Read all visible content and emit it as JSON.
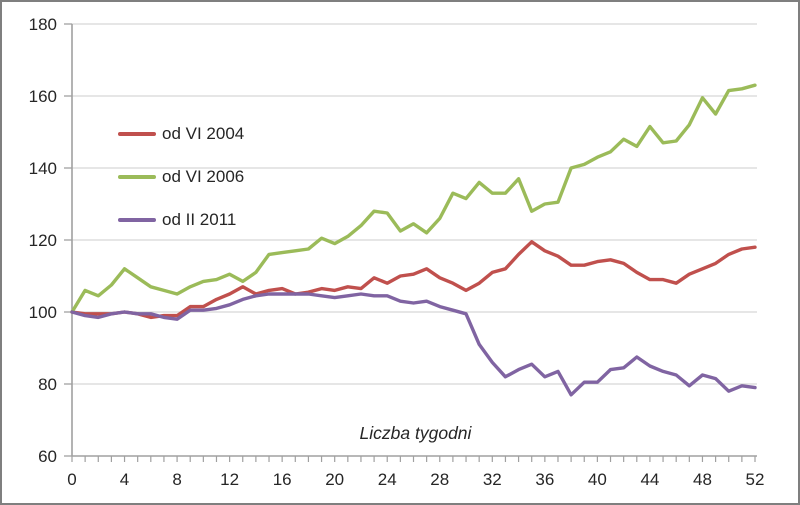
{
  "chart_data": {
    "type": "line",
    "title": "",
    "xlabel": "Liczba tygodni",
    "ylabel": "",
    "grid": true,
    "legend_position": "upper-left-inside",
    "x_axis": {
      "label": "Liczba tygodni",
      "min": 0,
      "max": 52,
      "minor_tick_step": 1,
      "tick_labels": [
        0,
        4,
        8,
        12,
        16,
        20,
        24,
        28,
        32,
        36,
        40,
        44,
        48,
        52
      ]
    },
    "y_axis": {
      "min": 60,
      "max": 180,
      "tick_step": 20,
      "ticks": [
        60,
        80,
        100,
        120,
        140,
        160,
        180
      ]
    },
    "weeks": [
      0,
      1,
      2,
      3,
      4,
      5,
      6,
      7,
      8,
      9,
      10,
      11,
      12,
      13,
      14,
      15,
      16,
      17,
      18,
      19,
      20,
      21,
      22,
      23,
      24,
      25,
      26,
      27,
      28,
      29,
      30,
      31,
      32,
      33,
      34,
      35,
      36,
      37,
      38,
      39,
      40,
      41,
      42,
      43,
      44,
      45,
      46,
      47,
      48,
      49,
      50,
      51,
      52
    ],
    "series": [
      {
        "name": "od VI 2004",
        "color": "#c0504d",
        "values": [
          100,
          99.5,
          99.5,
          99.5,
          100,
          99.5,
          98.5,
          99,
          99,
          101.5,
          101.5,
          103.5,
          105,
          107,
          105,
          106,
          106.5,
          105,
          105.5,
          106.5,
          106,
          107,
          106.5,
          109.5,
          108,
          110,
          110.5,
          112,
          109.5,
          108,
          106,
          108,
          111,
          112,
          116,
          119.5,
          117,
          115.5,
          113,
          113,
          114,
          114.5,
          113.5,
          111,
          109,
          109,
          108,
          110.5,
          112,
          113.5,
          116,
          117.5,
          118
        ]
      },
      {
        "name": "od VI 2006",
        "color": "#9bbb59",
        "values": [
          100,
          106,
          104.5,
          107.5,
          112,
          109.5,
          107,
          106,
          105,
          107,
          108.5,
          109,
          110.5,
          108.5,
          111,
          116,
          116.5,
          117,
          117.5,
          120.5,
          119,
          121,
          124,
          128,
          127.5,
          122.5,
          124.5,
          122,
          126,
          133,
          131.5,
          136,
          133,
          133,
          137,
          128,
          130,
          130.5,
          140,
          141,
          143,
          144.5,
          148,
          146,
          151.5,
          147,
          147.5,
          152,
          159.5,
          155,
          161.5,
          162,
          163
        ]
      },
      {
        "name": "od II 2011",
        "color": "#8064a2",
        "values": [
          100,
          99,
          98.5,
          99.5,
          100,
          99.5,
          99.5,
          98.5,
          98,
          100.5,
          100.5,
          101,
          102,
          103.5,
          104.5,
          105,
          105,
          105,
          105,
          104.5,
          104,
          104.5,
          105,
          104.5,
          104.5,
          103,
          102.5,
          103,
          101.5,
          100.5,
          99.5,
          91,
          86,
          82,
          84,
          85.5,
          82,
          83.5,
          77,
          80.5,
          80.5,
          84,
          84.5,
          87.5,
          85,
          83.5,
          82.5,
          79.5,
          82.5,
          81.5,
          78,
          79.5,
          79
        ]
      }
    ],
    "colors": {
      "gridline": "#d6d6d6",
      "axis": "#a0a0a0",
      "text": "#262626",
      "frame_border": "#7f7f7f",
      "background": "#ffffff"
    }
  }
}
